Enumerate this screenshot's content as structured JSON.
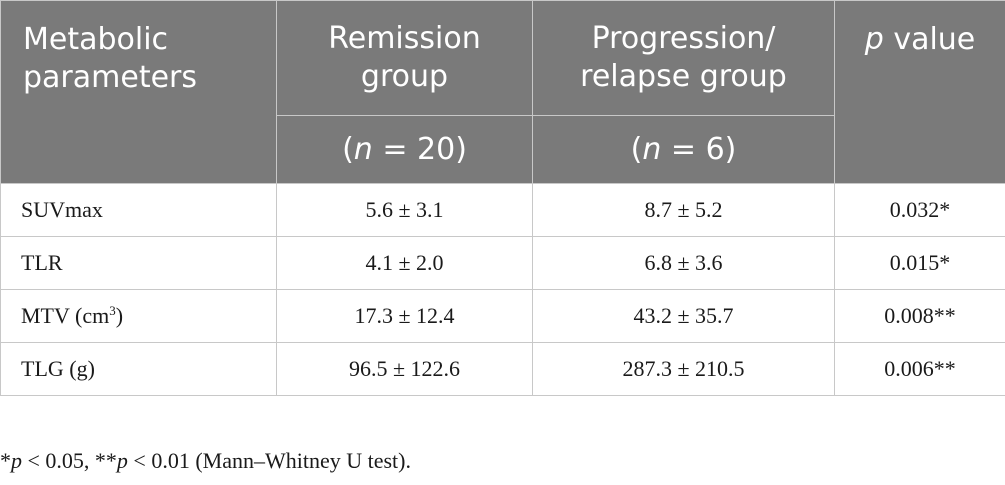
{
  "header": {
    "col1": [
      "Metabolic",
      "parameters"
    ],
    "col2": [
      "Remission",
      "group"
    ],
    "col3": [
      "Progression/",
      "relapse group"
    ],
    "col4_italic": "p",
    "col4_rest": " value",
    "n_remission_open": "(",
    "n_remission_var": "n",
    "n_remission_rest": " = 20)",
    "n_progression_open": "(",
    "n_progression_var": "n",
    "n_progression_rest": " = 6)"
  },
  "rows": [
    {
      "label": "SUVmax",
      "label_sup": "",
      "label_after": "",
      "remission": "5.6 ± 3.1",
      "progression": "8.7 ± 5.2",
      "p": "0.032*"
    },
    {
      "label": "TLR",
      "label_sup": "",
      "label_after": "",
      "remission": "4.1 ± 2.0",
      "progression": "6.8 ± 3.6",
      "p": "0.015*"
    },
    {
      "label": "MTV (cm",
      "label_sup": "3",
      "label_after": ")",
      "remission": "17.3 ± 12.4",
      "progression": "43.2 ± 35.7",
      "p": "0.008**"
    },
    {
      "label": "TLG (g)",
      "label_sup": "",
      "label_after": "",
      "remission": "96.5 ± 122.6",
      "progression": "287.3 ± 210.5",
      "p": "0.006**"
    }
  ],
  "footnote": {
    "a1": "*",
    "a2": "p",
    "a3": " < 0.05, **",
    "a4": "p",
    "a5": " < 0.01 (Mann–Whitney U test)."
  },
  "colors": {
    "header_bg": "#7a7a7a",
    "header_text": "#ffffff",
    "border": "#c8c8c8"
  }
}
